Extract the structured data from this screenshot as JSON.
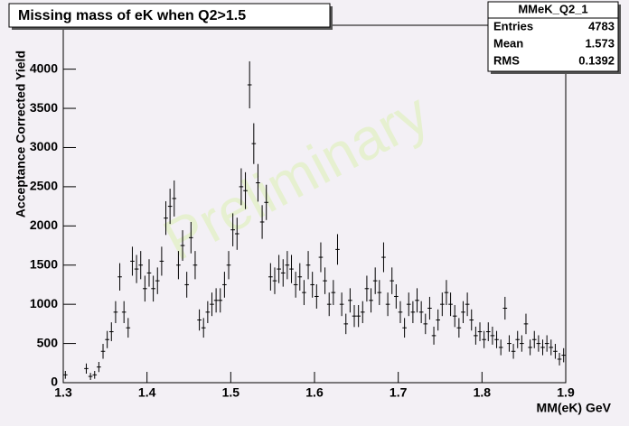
{
  "chart_data": {
    "type": "histogram",
    "title": "Missing mass of eK when Q2>1.5",
    "x_label": "MM(eK) GeV",
    "y_label": "Acceptance Corrected Yield",
    "watermark": "Preliminary",
    "color": "#000000",
    "stats": {
      "title": "MMeK_Q2_1",
      "rows": [
        {
          "label": "Entries",
          "value": 4783
        },
        {
          "label": "Mean",
          "value": 1.573
        },
        {
          "label": "RMS",
          "value": 0.1392
        }
      ]
    },
    "xlim": [
      1.3,
      1.9
    ],
    "xticks": [
      1.3,
      1.4,
      1.5,
      1.6,
      1.7,
      1.8,
      1.9
    ],
    "ylim": [
      0,
      4560
    ],
    "yticks": [
      0,
      500,
      1000,
      1500,
      2000,
      2500,
      3000,
      3500,
      4000
    ],
    "bins": [
      1.3,
      1.305,
      1.31,
      1.315,
      1.32,
      1.325,
      1.33,
      1.335,
      1.34,
      1.345,
      1.35,
      1.355,
      1.36,
      1.365,
      1.37,
      1.375,
      1.38,
      1.385,
      1.39,
      1.395,
      1.4,
      1.405,
      1.41,
      1.415,
      1.42,
      1.425,
      1.43,
      1.435,
      1.44,
      1.445,
      1.45,
      1.455,
      1.46,
      1.465,
      1.47,
      1.475,
      1.48,
      1.485,
      1.49,
      1.495,
      1.5,
      1.505,
      1.51,
      1.515,
      1.52,
      1.525,
      1.53,
      1.535,
      1.54,
      1.545,
      1.55,
      1.555,
      1.56,
      1.565,
      1.57,
      1.575,
      1.58,
      1.585,
      1.59,
      1.595,
      1.6,
      1.605,
      1.61,
      1.615,
      1.62,
      1.625,
      1.63,
      1.635,
      1.64,
      1.645,
      1.65,
      1.655,
      1.66,
      1.665,
      1.67,
      1.675,
      1.68,
      1.685,
      1.69,
      1.695,
      1.7,
      1.705,
      1.71,
      1.715,
      1.72,
      1.725,
      1.73,
      1.735,
      1.74,
      1.745,
      1.75,
      1.755,
      1.76,
      1.765,
      1.77,
      1.775,
      1.78,
      1.785,
      1.79,
      1.795,
      1.8,
      1.805,
      1.81,
      1.815,
      1.82,
      1.825,
      1.83,
      1.835,
      1.84,
      1.845,
      1.85,
      1.855,
      1.86,
      1.865,
      1.87,
      1.875,
      1.88,
      1.885,
      1.89,
      1.895,
      1.9
    ],
    "values": [
      100,
      0,
      0,
      0,
      0,
      180,
      80,
      100,
      200,
      400,
      550,
      650,
      900,
      1350,
      900,
      700,
      1550,
      1450,
      1500,
      1200,
      1400,
      1200,
      1300,
      1550,
      2100,
      2250,
      2350,
      1500,
      1750,
      1250,
      1850,
      1500,
      800,
      700,
      900,
      1000,
      1050,
      1050,
      1250,
      1500,
      1950,
      1900,
      2500,
      2450,
      3800,
      3050,
      2550,
      2050,
      2300,
      1350,
      1300,
      1450,
      1400,
      1500,
      1450,
      1250,
      1350,
      1150,
      1500,
      1250,
      1100,
      1600,
      1300,
      1000,
      1150,
      1700,
      1000,
      750,
      1050,
      850,
      850,
      900,
      1200,
      1050,
      1300,
      1150,
      1600,
      1000,
      1300,
      1100,
      900,
      700,
      1000,
      900,
      1050,
      900,
      750,
      950,
      600,
      800,
      1000,
      1150,
      1000,
      850,
      700,
      900,
      1000,
      800,
      600,
      650,
      550,
      650,
      600,
      550,
      450,
      950,
      500,
      400,
      550,
      500,
      750,
      450,
      550,
      500,
      450,
      500,
      450,
      400,
      300,
      350
    ],
    "errors": [
      50,
      0,
      0,
      0,
      0,
      65,
      45,
      50,
      65,
      95,
      110,
      120,
      140,
      175,
      140,
      125,
      185,
      180,
      180,
      165,
      175,
      165,
      170,
      185,
      215,
      225,
      230,
      180,
      195,
      165,
      200,
      180,
      135,
      125,
      140,
      150,
      155,
      155,
      165,
      180,
      210,
      205,
      235,
      235,
      300,
      260,
      240,
      215,
      225,
      175,
      170,
      180,
      175,
      180,
      180,
      165,
      175,
      160,
      180,
      165,
      155,
      190,
      170,
      150,
      160,
      195,
      150,
      130,
      155,
      140,
      140,
      140,
      165,
      155,
      170,
      160,
      190,
      150,
      170,
      155,
      140,
      125,
      150,
      140,
      155,
      140,
      130,
      145,
      115,
      135,
      150,
      160,
      150,
      140,
      125,
      140,
      150,
      135,
      115,
      120,
      110,
      120,
      115,
      110,
      100,
      145,
      105,
      95,
      110,
      105,
      130,
      100,
      110,
      105,
      100,
      105,
      100,
      95,
      80,
      90
    ]
  }
}
